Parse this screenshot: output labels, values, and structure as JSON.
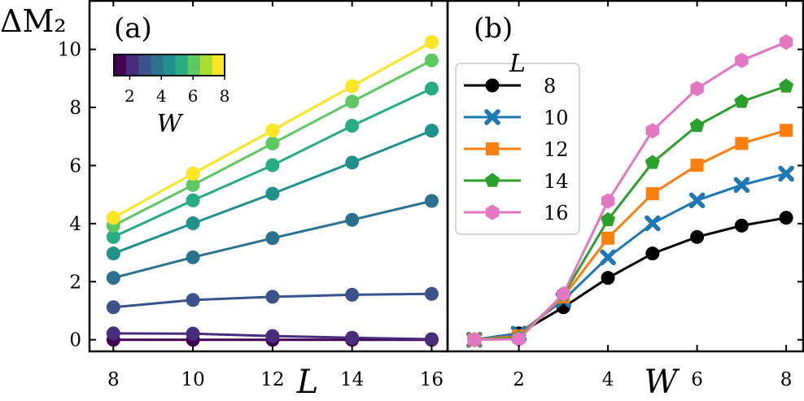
{
  "figure": {
    "ylabel": "ΔM₂"
  },
  "chart_data": [
    {
      "panel": "(a)",
      "type": "line",
      "xlabel": "L",
      "ylabel": "ΔM₂",
      "xlim": [
        7.4,
        16.4
      ],
      "ylim": [
        -0.4,
        11.7
      ],
      "x_ticks": [
        8,
        10,
        12,
        14,
        16
      ],
      "y_ticks": [
        0,
        2,
        4,
        6,
        8,
        10
      ],
      "x": [
        8,
        10,
        12,
        14,
        16
      ],
      "series": [
        {
          "W": 1,
          "color": "#440154",
          "values": [
            0.0,
            0.0,
            0.0,
            0.0,
            0.0
          ]
        },
        {
          "W": 2,
          "color": "#472d7b",
          "values": [
            0.22,
            0.21,
            0.13,
            0.07,
            0.02
          ]
        },
        {
          "W": 3,
          "color": "#3b528b",
          "values": [
            1.12,
            1.37,
            1.48,
            1.55,
            1.58
          ]
        },
        {
          "W": 4,
          "color": "#2c728e",
          "values": [
            2.13,
            2.84,
            3.5,
            4.13,
            4.78
          ]
        },
        {
          "W": 5,
          "color": "#21918c",
          "values": [
            2.97,
            4.01,
            5.03,
            6.1,
            7.2
          ]
        },
        {
          "W": 6,
          "color": "#27ad81",
          "values": [
            3.54,
            4.8,
            6.01,
            7.37,
            8.65
          ]
        },
        {
          "W": 7,
          "color": "#5ec962",
          "values": [
            3.93,
            5.33,
            6.76,
            8.2,
            9.62
          ]
        },
        {
          "W": 8,
          "color": "#aadc32",
          "values": [
            4.2,
            5.72,
            7.21,
            8.73,
            10.25
          ]
        },
        {
          "W": 8,
          "color": "#fde725",
          "values": [
            4.2,
            5.72,
            7.21,
            8.73,
            10.25
          ]
        }
      ],
      "colorbar": {
        "label": "W",
        "ticks": [
          "2",
          "4",
          "6",
          "8"
        ],
        "colors": [
          "#440154",
          "#472d7b",
          "#3b528b",
          "#2c728e",
          "#21918c",
          "#27ad81",
          "#5ec962",
          "#aadc32",
          "#fde725"
        ]
      }
    },
    {
      "panel": "(b)",
      "type": "line",
      "xlabel": "W",
      "xlim": [
        0.4,
        8.4
      ],
      "ylim": [
        -0.4,
        11.7
      ],
      "x_ticks": [
        2,
        4,
        6,
        8
      ],
      "x": [
        1,
        2,
        3,
        4,
        5,
        6,
        7,
        8
      ],
      "legend": {
        "title": "L",
        "placement": "upper-left"
      },
      "series": [
        {
          "name": "8",
          "color": "#000000",
          "marker": "circle",
          "values": [
            0.0,
            0.22,
            1.12,
            2.13,
            2.97,
            3.54,
            3.93,
            4.2
          ]
        },
        {
          "name": "10",
          "color": "#1f77b4",
          "marker": "x",
          "values": [
            0.0,
            0.21,
            1.37,
            2.84,
            4.01,
            4.8,
            5.33,
            5.72
          ]
        },
        {
          "name": "12",
          "color": "#ff7f0e",
          "marker": "square",
          "values": [
            0.0,
            0.13,
            1.48,
            3.5,
            5.03,
            6.01,
            6.76,
            7.21
          ]
        },
        {
          "name": "14",
          "color": "#2ca02c",
          "marker": "pentagon",
          "values": [
            0.0,
            0.07,
            1.55,
            4.13,
            6.1,
            7.37,
            8.2,
            8.73
          ]
        },
        {
          "name": "16",
          "color": "#e377c2",
          "marker": "hexagon",
          "values": [
            0.0,
            0.02,
            1.58,
            4.78,
            7.2,
            8.65,
            9.62,
            10.25
          ]
        }
      ]
    }
  ]
}
